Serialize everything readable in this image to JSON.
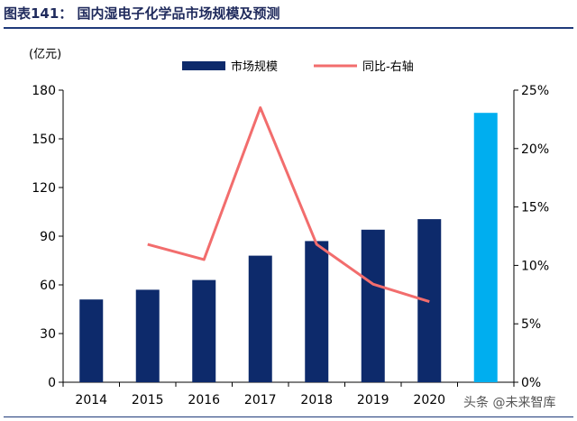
{
  "figure_title": "图表141：   国内湿电子化学品市场规模及预测",
  "watermark": "头条 @未来智库",
  "colors": {
    "bar": "#0d2a6b",
    "bar_forecast": "#00aeef",
    "line": "#f26d6d",
    "title": "#1f2a5c"
  },
  "chart_data": {
    "type": "bar",
    "categories": [
      "2014",
      "2015",
      "2016",
      "2017",
      "2018",
      "2019",
      "2020",
      ""
    ],
    "series": [
      {
        "name": "市场规模",
        "type": "bar",
        "axis": "left",
        "values": [
          51,
          57,
          63,
          78,
          87,
          94,
          100.5,
          166
        ]
      },
      {
        "name": "同比-右轴",
        "type": "line",
        "axis": "right",
        "values": [
          null,
          11.8,
          10.5,
          23.5,
          11.8,
          8.4,
          6.9,
          null
        ]
      }
    ],
    "ylabel": "(亿元)",
    "ylim": [
      0,
      180
    ],
    "yticks": [
      "0",
      "30",
      "60",
      "90",
      "120",
      "150",
      "180"
    ],
    "y2lim": [
      0,
      25
    ],
    "y2ticks": [
      "0%",
      "5%",
      "10%",
      "15%",
      "20%",
      "25%"
    ],
    "legend_position": "top",
    "grid": false
  }
}
